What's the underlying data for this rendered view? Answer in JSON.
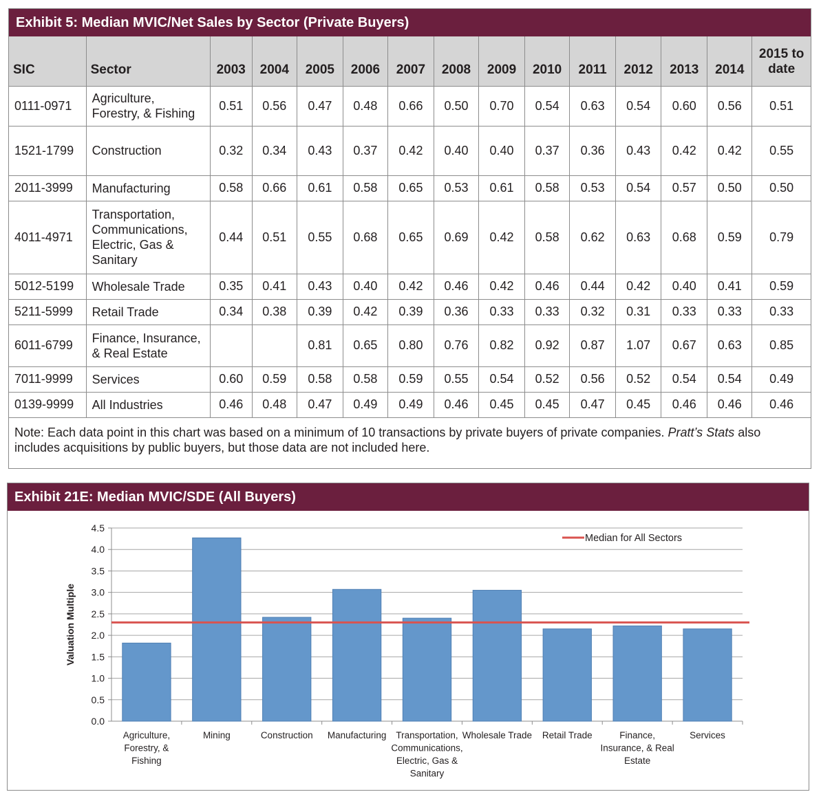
{
  "exhibit5": {
    "title": "Exhibit 5: Median MVIC/Net Sales by Sector (Private Buyers)",
    "headers": [
      "SIC",
      "Sector",
      "2003",
      "2004",
      "2005",
      "2006",
      "2007",
      "2008",
      "2009",
      "2010",
      "2011",
      "2012",
      "2013",
      "2014"
    ],
    "last_header": [
      "2015 to",
      "date"
    ],
    "rows": [
      {
        "sic": "0111-0971",
        "sector": [
          "Agriculture,",
          "Forestry, & Fishing"
        ],
        "values": [
          "0.51",
          "0.56",
          "0.47",
          "0.48",
          "0.66",
          "0.50",
          "0.70",
          "0.54",
          "0.63",
          "0.54",
          "0.60",
          "0.56",
          "0.51"
        ]
      },
      {
        "sic": "1521-1799",
        "sector": [
          "Construction"
        ],
        "values": [
          "0.32",
          "0.34",
          "0.43",
          "0.37",
          "0.42",
          "0.40",
          "0.40",
          "0.37",
          "0.36",
          "0.43",
          "0.42",
          "0.42",
          "0.55"
        ]
      },
      {
        "sic": "2011-3999",
        "sector": [
          "Manufacturing"
        ],
        "values": [
          "0.58",
          "0.66",
          "0.61",
          "0.58",
          "0.65",
          "0.53",
          "0.61",
          "0.58",
          "0.53",
          "0.54",
          "0.57",
          "0.50",
          "0.50"
        ]
      },
      {
        "sic": "4011-4971",
        "sector": [
          "Transportation,",
          "Communications,",
          "Electric, Gas &",
          "Sanitary"
        ],
        "values": [
          "0.44",
          "0.51",
          "0.55",
          "0.68",
          "0.65",
          "0.69",
          "0.42",
          "0.58",
          "0.62",
          "0.63",
          "0.68",
          "0.59",
          "0.79"
        ]
      },
      {
        "sic": "5012-5199",
        "sector": [
          "Wholesale Trade"
        ],
        "values": [
          "0.35",
          "0.41",
          "0.43",
          "0.40",
          "0.42",
          "0.46",
          "0.42",
          "0.46",
          "0.44",
          "0.42",
          "0.40",
          "0.41",
          "0.59"
        ]
      },
      {
        "sic": "5211-5999",
        "sector": [
          "Retail Trade"
        ],
        "values": [
          "0.34",
          "0.38",
          "0.39",
          "0.42",
          "0.39",
          "0.36",
          "0.33",
          "0.33",
          "0.32",
          "0.31",
          "0.33",
          "0.33",
          "0.33"
        ]
      },
      {
        "sic": "6011-6799",
        "sector": [
          "Finance, Insurance,",
          "& Real Estate"
        ],
        "values": [
          "",
          "",
          "0.81",
          "0.65",
          "0.80",
          "0.76",
          "0.82",
          "0.92",
          "0.87",
          "1.07",
          "0.67",
          "0.63",
          "0.85"
        ]
      },
      {
        "sic": "7011-9999",
        "sector": [
          "Services"
        ],
        "values": [
          "0.60",
          "0.59",
          "0.58",
          "0.58",
          "0.59",
          "0.55",
          "0.54",
          "0.52",
          "0.56",
          "0.52",
          "0.54",
          "0.54",
          "0.49"
        ]
      },
      {
        "sic": "0139-9999",
        "sector": [
          "All Industries"
        ],
        "values": [
          "0.46",
          "0.48",
          "0.47",
          "0.49",
          "0.49",
          "0.46",
          "0.45",
          "0.45",
          "0.47",
          "0.45",
          "0.46",
          "0.46",
          "0.46"
        ]
      }
    ],
    "note_part1": "Note: Each data point in this chart was based on a minimum of 10 transactions by private buyers of private companies. ",
    "note_italic": "Pratt’s Stats",
    "note_part2": " also includes acquisitions by public buyers, but those data are not included here."
  },
  "exhibit21": {
    "title": "Exhibit 21E: Median MVIC/SDE (All Buyers)"
  },
  "chart_data": {
    "type": "bar",
    "title": "Exhibit 21E: Median MVIC/SDE (All Buyers)",
    "categories": [
      [
        "Agriculture,",
        "Forestry, &",
        "Fishing"
      ],
      [
        "Mining"
      ],
      [
        "Construction"
      ],
      [
        "Manufacturing"
      ],
      [
        "Transportation,",
        "Communications,",
        "Electric, Gas &",
        "Sanitary"
      ],
      [
        "Wholesale Trade"
      ],
      [
        "Retail Trade"
      ],
      [
        "Finance,",
        "Insurance, & Real",
        "Estate"
      ],
      [
        "Services"
      ]
    ],
    "values": [
      1.82,
      4.27,
      2.42,
      3.07,
      2.4,
      3.05,
      2.15,
      2.22,
      2.15
    ],
    "median_line": {
      "label": "Median for All Sectors",
      "value": 2.3
    },
    "ylabel": "Valuation Multiple",
    "xlabel": "",
    "ylim": [
      0,
      4.5
    ],
    "yticks": [
      "0.0",
      "0.5",
      "1.0",
      "1.5",
      "2.0",
      "2.5",
      "3.0",
      "3.5",
      "4.0",
      "4.5"
    ],
    "grid": true,
    "legend": "top-right",
    "colors": {
      "bar": "#6497cb",
      "bar_stroke": "#4f7fb3",
      "median": "#d9534f",
      "grid": "#a6a6a6",
      "axis": "#8c8c8c"
    }
  },
  "colors": {
    "header_bg": "#6b1f3e",
    "header_text": "#ffffff",
    "table_header_bg": "#d5d5d5"
  }
}
